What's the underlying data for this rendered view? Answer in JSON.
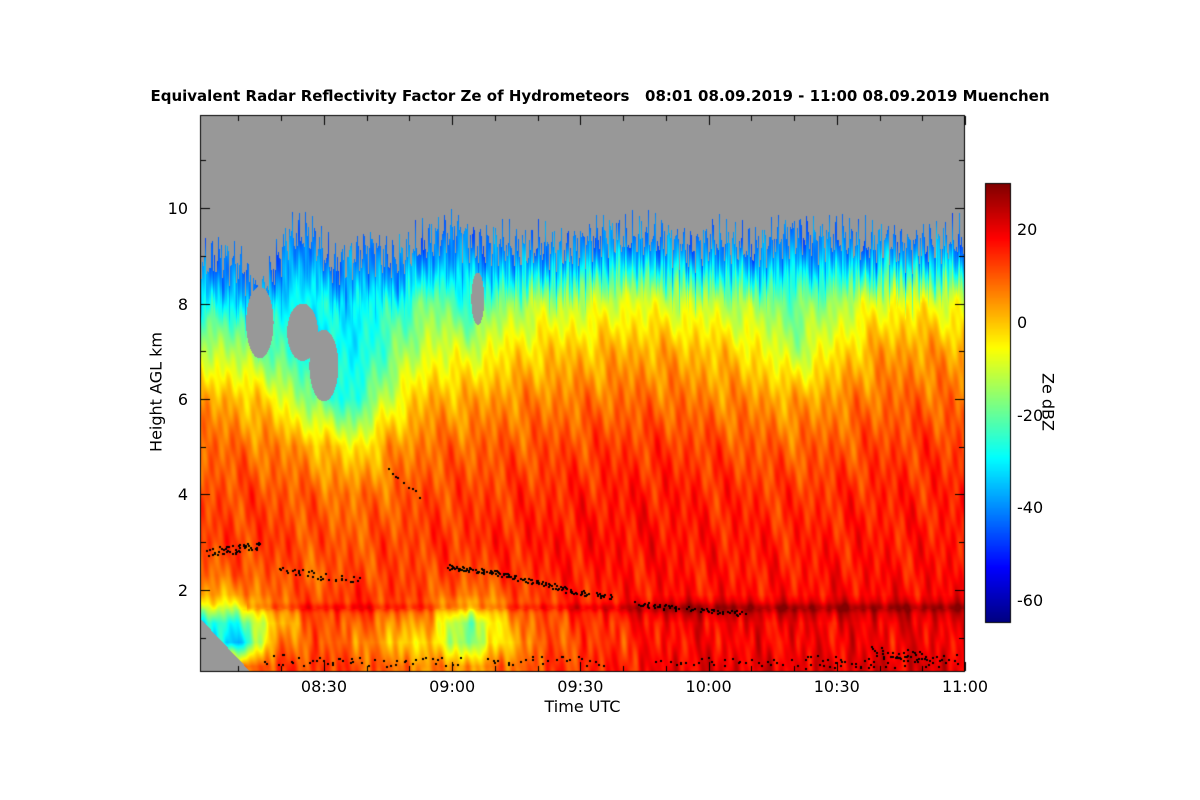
{
  "header": {
    "title": "Equivalent Radar Reflectivity Factor Ze of Hydrometeors   08:01 08.09.2019 - 11:00 08.09.2019 Muenchen"
  },
  "chart_data": {
    "type": "heatmap",
    "title": "Equivalent Radar Reflectivity Factor Ze of Hydrometeors   08:01 08.09.2019 - 11:00 08.09.2019 Muenchen",
    "xlabel": "Time UTC",
    "ylabel": "Height AGL km",
    "colorbar_label": "Ze dBZ",
    "time_start": "08:01",
    "time_end": "11:00",
    "date": "08.09.2019",
    "station": "Muenchen",
    "x_range_minutes": [
      1,
      180
    ],
    "y_range_km": [
      0.28,
      11.95
    ],
    "dbz_range": [
      -65,
      30
    ],
    "grid_on": false,
    "legend_position": "right-colorbar",
    "no_data_color": "#989898",
    "frame_color": "#000000",
    "x_ticks": [
      {
        "minute": 30,
        "label": "08:30"
      },
      {
        "minute": 60,
        "label": "09:00"
      },
      {
        "minute": 90,
        "label": "09:30"
      },
      {
        "minute": 120,
        "label": "10:00"
      },
      {
        "minute": 150,
        "label": "10:30"
      },
      {
        "minute": 180,
        "label": "11:00"
      }
    ],
    "x_minor_step_min": 10,
    "y_ticks": [
      {
        "km": 2,
        "label": "2"
      },
      {
        "km": 4,
        "label": "4"
      },
      {
        "km": 6,
        "label": "6"
      },
      {
        "km": 8,
        "label": "8"
      },
      {
        "km": 10,
        "label": "10"
      }
    ],
    "y_minor_step_km": 1,
    "colorbar_ticks": [
      {
        "dbz": 20,
        "label": "20"
      },
      {
        "dbz": 0,
        "label": "0"
      },
      {
        "dbz": -20,
        "label": "-20"
      },
      {
        "dbz": -40,
        "label": "-40"
      },
      {
        "dbz": -60,
        "label": "-60"
      }
    ],
    "grid": {
      "times_min": [
        1,
        10,
        19,
        28,
        37,
        46,
        55,
        64,
        73,
        82,
        91,
        100,
        110,
        120,
        130,
        140,
        150,
        160,
        170,
        180
      ],
      "heights_km": [
        0.4,
        0.9,
        1.3,
        1.55,
        1.7,
        1.9,
        2.3,
        3,
        4,
        5,
        6,
        7,
        8,
        8.7,
        9.3
      ],
      "dbz_values": [
        [
          10,
          8,
          12,
          13,
          12,
          8,
          6,
          4,
          8,
          12,
          14,
          16,
          19,
          20,
          20,
          20,
          20,
          21,
          21,
          21
        ],
        [
          -30,
          -35,
          6,
          10,
          8,
          0,
          -3,
          -18,
          0,
          10,
          12,
          14,
          17,
          18,
          18,
          18,
          19,
          19,
          19,
          19
        ],
        [
          -30,
          -25,
          0,
          11,
          10,
          5,
          2,
          -20,
          3,
          11,
          13,
          15,
          18,
          19,
          19,
          19,
          19,
          20,
          20,
          20
        ],
        [
          -15,
          -12,
          4,
          12,
          13,
          10,
          6,
          -8,
          6,
          12,
          15,
          18,
          23,
          24,
          23,
          23,
          23,
          23,
          23,
          23
        ],
        [
          -5,
          -4,
          8,
          12,
          14,
          12,
          9,
          0,
          8,
          13,
          15,
          17,
          21,
          22,
          21,
          21,
          22,
          22,
          22,
          22
        ],
        [
          2,
          3,
          10,
          11,
          14,
          13,
          11,
          6,
          10,
          14,
          15,
          16,
          17,
          17,
          17,
          17,
          18,
          18,
          18,
          18
        ],
        [
          8,
          9,
          11,
          9,
          12,
          12,
          12,
          11,
          13,
          15,
          16,
          16,
          17,
          16,
          16,
          16,
          17,
          17,
          17,
          17
        ],
        [
          12,
          13,
          13,
          11,
          10,
          12,
          13,
          14,
          15,
          16,
          17,
          17,
          17,
          16,
          16,
          15,
          16,
          16,
          16,
          17
        ],
        [
          11,
          12,
          11,
          9,
          7,
          9,
          12,
          12,
          13,
          14,
          15,
          16,
          16,
          15,
          14,
          13,
          14,
          15,
          15,
          15
        ],
        [
          9,
          8,
          6,
          2,
          -5,
          4,
          8,
          9,
          10,
          11,
          12,
          13,
          13,
          12,
          10,
          9,
          10,
          12,
          13,
          12
        ],
        [
          3,
          1,
          -5,
          -20,
          -28,
          -8,
          2,
          2,
          5,
          6,
          7,
          8,
          8,
          6,
          5,
          2,
          5,
          8,
          9,
          8
        ],
        [
          -10,
          -14,
          -22,
          -32,
          -30,
          -20,
          -8,
          -10,
          -4,
          -1,
          0,
          2,
          2,
          0,
          -3,
          -13,
          -4,
          3,
          4,
          2
        ],
        [
          -27,
          -30,
          -30,
          -28,
          -30,
          -26,
          -18,
          -25,
          -15,
          -12,
          -11,
          -8,
          -9,
          -11,
          -14,
          -20,
          -14,
          -7,
          -6,
          -9
        ],
        [
          -38,
          -38,
          -36,
          -34,
          -36,
          -34,
          -30,
          -32,
          -28,
          -24,
          -24,
          -21,
          -22,
          -24,
          -26,
          -29,
          -26,
          -20,
          -19,
          -22
        ],
        [
          -40,
          -40,
          -40,
          -40,
          -41,
          -40,
          -40,
          -38,
          -38,
          -36,
          -36,
          -34,
          -35,
          -36,
          -37,
          -38,
          -37,
          -34,
          -33,
          -35
        ]
      ]
    },
    "cloud_top_km": [
      [
        1,
        8.85
      ],
      [
        6,
        9.0
      ],
      [
        11,
        8.7
      ],
      [
        15,
        8.0
      ],
      [
        18,
        8.6
      ],
      [
        22,
        9.35
      ],
      [
        27,
        9.45
      ],
      [
        32,
        8.85
      ],
      [
        36,
        9.05
      ],
      [
        41,
        9.3
      ],
      [
        46,
        8.95
      ],
      [
        51,
        9.1
      ],
      [
        56,
        9.3
      ],
      [
        61,
        9.45
      ],
      [
        66,
        9.15
      ],
      [
        71,
        9.3
      ],
      [
        76,
        9.2
      ],
      [
        81,
        9.35
      ],
      [
        86,
        9.2
      ],
      [
        91,
        9.3
      ],
      [
        96,
        9.4
      ],
      [
        101,
        9.25
      ],
      [
        106,
        9.35
      ],
      [
        111,
        9.3
      ],
      [
        116,
        9.2
      ],
      [
        121,
        9.45
      ],
      [
        126,
        9.35
      ],
      [
        131,
        9.2
      ],
      [
        136,
        9.35
      ],
      [
        141,
        9.4
      ],
      [
        146,
        9.25
      ],
      [
        151,
        9.35
      ],
      [
        156,
        9.25
      ],
      [
        161,
        9.4
      ],
      [
        166,
        9.3
      ],
      [
        171,
        9.35
      ],
      [
        176,
        9.3
      ],
      [
        180,
        9.3
      ]
    ],
    "no_data_patches": [
      {
        "t": 15,
        "h": 7.6,
        "rt": 3.2,
        "rh": 0.75
      },
      {
        "t": 25,
        "h": 7.4,
        "rt": 3.6,
        "rh": 0.6
      },
      {
        "t": 30,
        "h": 6.7,
        "rt": 3.4,
        "rh": 0.75
      },
      {
        "t": 66,
        "h": 8.1,
        "rt": 1.5,
        "rh": 0.55
      }
    ],
    "bottom_left_no_data": {
      "t_max": 14,
      "h_at_t0": 1.5,
      "slope_km_per_min": 0.095
    },
    "bright_band": {
      "height_km": 1.63,
      "sigma_km": 0.06,
      "amp_dbz": 4.5,
      "start_min": 12
    },
    "cloud_base_dots": [
      {
        "t0": 3,
        "t1": 15,
        "h0": 2.8,
        "h1": 2.92,
        "n": 50,
        "j": 0.09
      },
      {
        "t0": 20,
        "t1": 27,
        "h0": 2.45,
        "h1": 2.35,
        "n": 16,
        "j": 0.07
      },
      {
        "t0": 28,
        "t1": 38,
        "h0": 2.3,
        "h1": 2.2,
        "n": 18,
        "j": 0.09
      },
      {
        "t0": 45,
        "t1": 52,
        "h0": 4.5,
        "h1": 4.0,
        "n": 9,
        "j": 0.06
      },
      {
        "t0": 59,
        "t1": 72,
        "h0": 2.5,
        "h1": 2.35,
        "n": 60,
        "j": 0.05
      },
      {
        "t0": 72,
        "t1": 86,
        "h0": 2.32,
        "h1": 2.05,
        "n": 55,
        "j": 0.05
      },
      {
        "t0": 86,
        "t1": 97,
        "h0": 2.02,
        "h1": 1.85,
        "n": 40,
        "j": 0.05
      },
      {
        "t0": 103,
        "t1": 113,
        "h0": 1.72,
        "h1": 1.62,
        "n": 30,
        "j": 0.05
      },
      {
        "t0": 115,
        "t1": 128,
        "h0": 1.62,
        "h1": 1.52,
        "n": 35,
        "j": 0.05
      },
      {
        "t0": 16,
        "t1": 40,
        "h0": 0.55,
        "h1": 0.55,
        "n": 28,
        "j": 0.12
      },
      {
        "t0": 42,
        "t1": 62,
        "h0": 0.5,
        "h1": 0.5,
        "n": 20,
        "j": 0.1
      },
      {
        "t0": 68,
        "t1": 96,
        "h0": 0.55,
        "h1": 0.5,
        "n": 26,
        "j": 0.1
      },
      {
        "t0": 107,
        "t1": 140,
        "h0": 0.5,
        "h1": 0.5,
        "n": 30,
        "j": 0.1
      },
      {
        "t0": 142,
        "t1": 178,
        "h0": 0.5,
        "h1": 0.55,
        "n": 60,
        "j": 0.14
      },
      {
        "t0": 158,
        "t1": 172,
        "h0": 0.72,
        "h1": 0.6,
        "n": 30,
        "j": 0.12
      }
    ]
  }
}
